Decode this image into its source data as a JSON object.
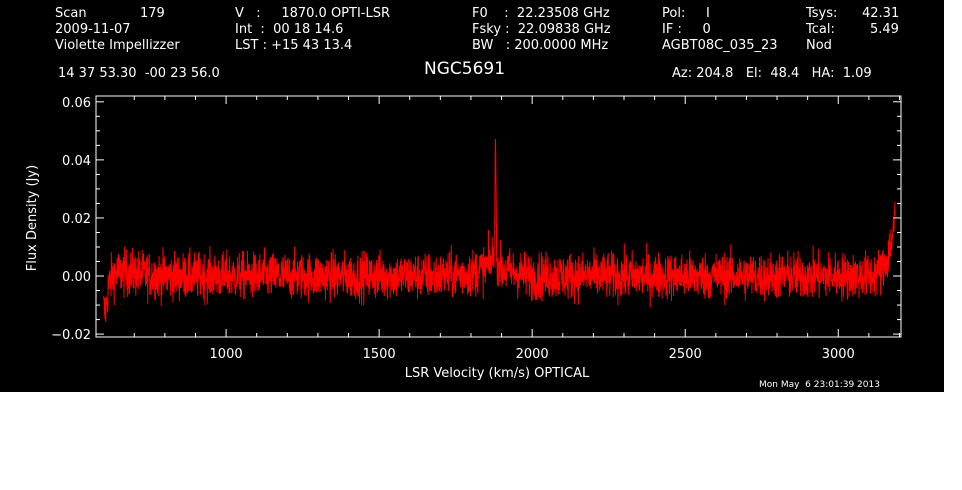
{
  "header": {
    "scan_label": "Scan",
    "scan_value": "179",
    "date": "2009-11-07",
    "observer": "Violette Impellizzer",
    "v_line": "V   :     1870.0 OPTI-LSR",
    "int_line": "Int  :  00 18 14.6",
    "lst_line": "LST : +15 43 13.4",
    "f0_line": "F0    :  22.23508 GHz",
    "fsky_line": "Fsky :  22.09838 GHz",
    "bw_line": "BW   : 200.0000 MHz",
    "pol_line": "Pol:     I",
    "if_line": "IF :     0",
    "project": "AGBT08C_035_23",
    "tsys_label": "Tsys:",
    "tsys_value": "42.31",
    "tcal_label": "Tcal:",
    "tcal_value": "5.49",
    "mode": "Nod",
    "coords": "14 37 53.30  -00 23 56.0",
    "source": "NGC5691",
    "azelha": "Az: 204.8   El:  48.4   HA:  1.09"
  },
  "footer": {
    "timestamp": "Mon May  6 23:01:39 2013"
  },
  "colors": {
    "background": "#000000",
    "axes": "#ffffff",
    "trace": "#ff0000"
  },
  "chart_data": {
    "type": "line",
    "xlabel": "LSR Velocity (km/s) OPTICAL",
    "ylabel": "Flux Density (Jy)",
    "xlim": [
      575,
      3205
    ],
    "ylim": [
      -0.021,
      0.062
    ],
    "xticks": [
      1000,
      1500,
      2000,
      2500,
      3000
    ],
    "xtick_labels": [
      "1000",
      "1500",
      "2000",
      "2500",
      "3000"
    ],
    "yticks": [
      -0.02,
      0.0,
      0.02,
      0.04,
      0.06
    ],
    "ytick_labels": [
      "−0.02",
      "0.00",
      "0.02",
      "0.04",
      "0.06"
    ],
    "series": [
      {
        "noise_sigma_jy": 0.004,
        "x": [
          600,
          605,
          610,
          615,
          620,
          630,
          640,
          650,
          700,
          800,
          900,
          1000,
          1100,
          1200,
          1300,
          1400,
          1500,
          1600,
          1700,
          1800,
          1850,
          1870,
          1876,
          1880,
          1884,
          1890,
          1900,
          1950,
          2000,
          2100,
          2200,
          2300,
          2400,
          2500,
          2600,
          2700,
          2800,
          2900,
          3000,
          3100,
          3130,
          3150,
          3160,
          3170,
          3180,
          3185
        ],
        "y": [
          -0.011,
          -0.013,
          -0.009,
          -0.004,
          -0.002,
          0.0,
          0.001,
          0.001,
          0.001,
          0.0,
          0.0,
          0.0,
          0.0,
          0.0,
          0.0,
          0.0,
          0.0,
          0.0,
          0.0,
          0.001,
          0.003,
          0.006,
          0.011,
          0.047,
          0.009,
          0.004,
          0.002,
          0.001,
          0.0,
          0.0,
          0.0,
          0.0,
          0.0,
          0.0,
          0.0,
          0.0,
          0.0,
          0.0,
          0.0,
          0.0,
          0.001,
          0.003,
          0.006,
          0.01,
          0.016,
          0.02
        ]
      }
    ]
  }
}
